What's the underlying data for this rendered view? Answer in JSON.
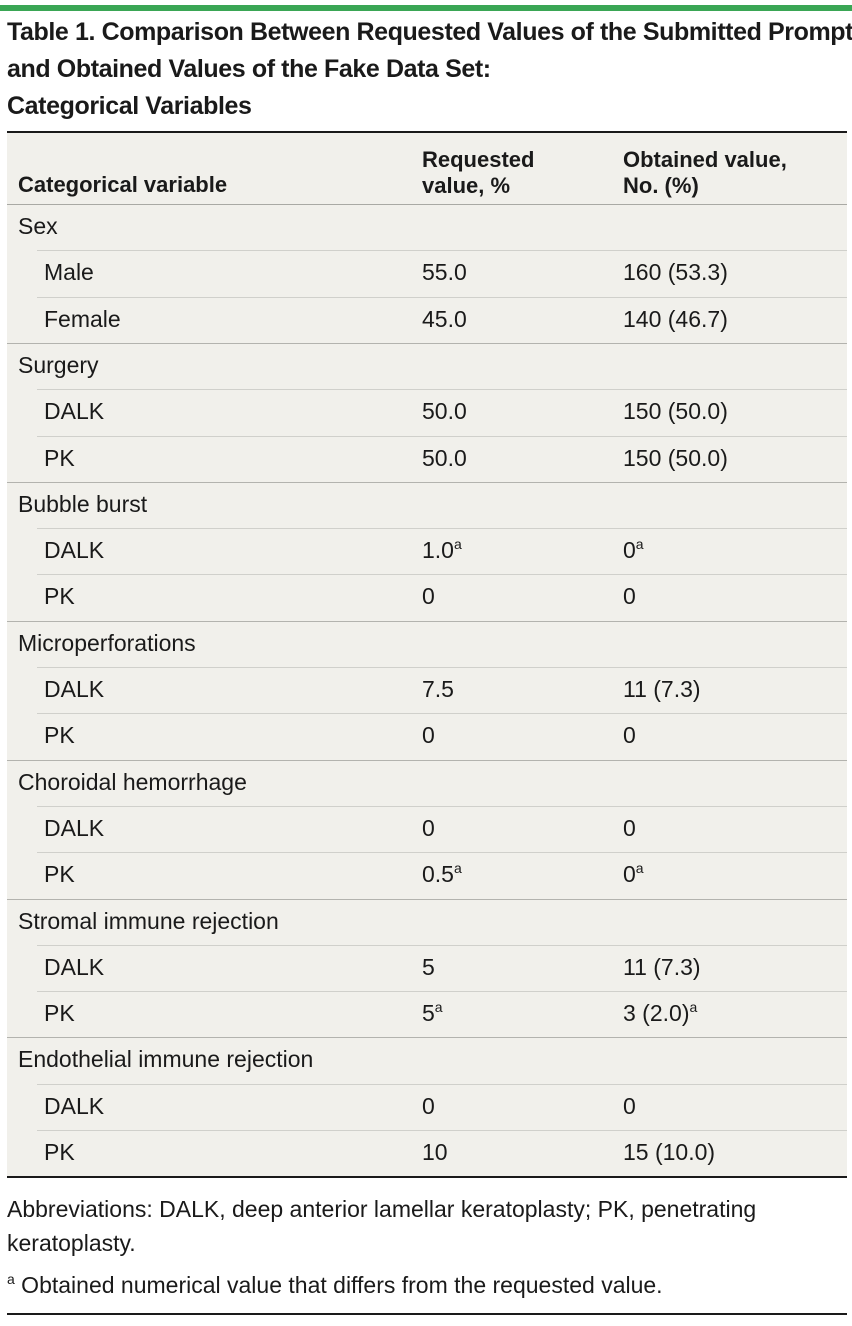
{
  "title": {
    "line1": "Table 1. Comparison Between Requested Values of the Submitted Prompt",
    "line2": "and Obtained Values of the Fake Data Set:",
    "line3": "Categorical Variables"
  },
  "header": {
    "col1": "Categorical variable",
    "col2_line1": "Requested",
    "col2_line2": "value, %",
    "col3_line1": "Obtained value,",
    "col3_line2": "No. (%)"
  },
  "groups": [
    {
      "label": "Sex",
      "rows": [
        {
          "label": "Male",
          "requested": "55.0",
          "requested_sup": "",
          "obtained": "160 (53.3)",
          "obtained_sup": ""
        },
        {
          "label": "Female",
          "requested": "45.0",
          "requested_sup": "",
          "obtained": "140 (46.7)",
          "obtained_sup": ""
        }
      ]
    },
    {
      "label": "Surgery",
      "rows": [
        {
          "label": "DALK",
          "requested": "50.0",
          "requested_sup": "",
          "obtained": "150 (50.0)",
          "obtained_sup": ""
        },
        {
          "label": "PK",
          "requested": "50.0",
          "requested_sup": "",
          "obtained": "150 (50.0)",
          "obtained_sup": ""
        }
      ]
    },
    {
      "label": "Bubble burst",
      "rows": [
        {
          "label": "DALK",
          "requested": "1.0",
          "requested_sup": "a",
          "obtained": "0",
          "obtained_sup": "a"
        },
        {
          "label": "PK",
          "requested": "0",
          "requested_sup": "",
          "obtained": "0",
          "obtained_sup": ""
        }
      ]
    },
    {
      "label": "Microperforations",
      "rows": [
        {
          "label": "DALK",
          "requested": "7.5",
          "requested_sup": "",
          "obtained": "11 (7.3)",
          "obtained_sup": ""
        },
        {
          "label": "PK",
          "requested": "0",
          "requested_sup": "",
          "obtained": "0",
          "obtained_sup": ""
        }
      ]
    },
    {
      "label": "Choroidal hemorrhage",
      "rows": [
        {
          "label": "DALK",
          "requested": "0",
          "requested_sup": "",
          "obtained": "0",
          "obtained_sup": ""
        },
        {
          "label": "PK",
          "requested": "0.5",
          "requested_sup": "a",
          "obtained": "0",
          "obtained_sup": "a"
        }
      ]
    },
    {
      "label": "Stromal immune rejection",
      "rows": [
        {
          "label": "DALK",
          "requested": "5",
          "requested_sup": "",
          "obtained": "11 (7.3)",
          "obtained_sup": ""
        },
        {
          "label": "PK",
          "requested": "5",
          "requested_sup": "a",
          "obtained": "3 (2.0)",
          "obtained_sup": "a"
        }
      ]
    },
    {
      "label": "Endothelial immune rejection",
      "rows": [
        {
          "label": "DALK",
          "requested": "0",
          "requested_sup": "",
          "obtained": "0",
          "obtained_sup": ""
        },
        {
          "label": "PK",
          "requested": "10",
          "requested_sup": "",
          "obtained": "15 (10.0)",
          "obtained_sup": ""
        }
      ]
    }
  ],
  "footnotes": {
    "abbreviations": "Abbreviations: DALK, deep anterior lamellar keratoplasty; PK, penetrating keratoplasty.",
    "note_marker": "a",
    "note_text": " Obtained numerical value that differs from the requested value."
  },
  "colors": {
    "top_rule": "#3aa655",
    "table_background": "#f1f0eb"
  }
}
